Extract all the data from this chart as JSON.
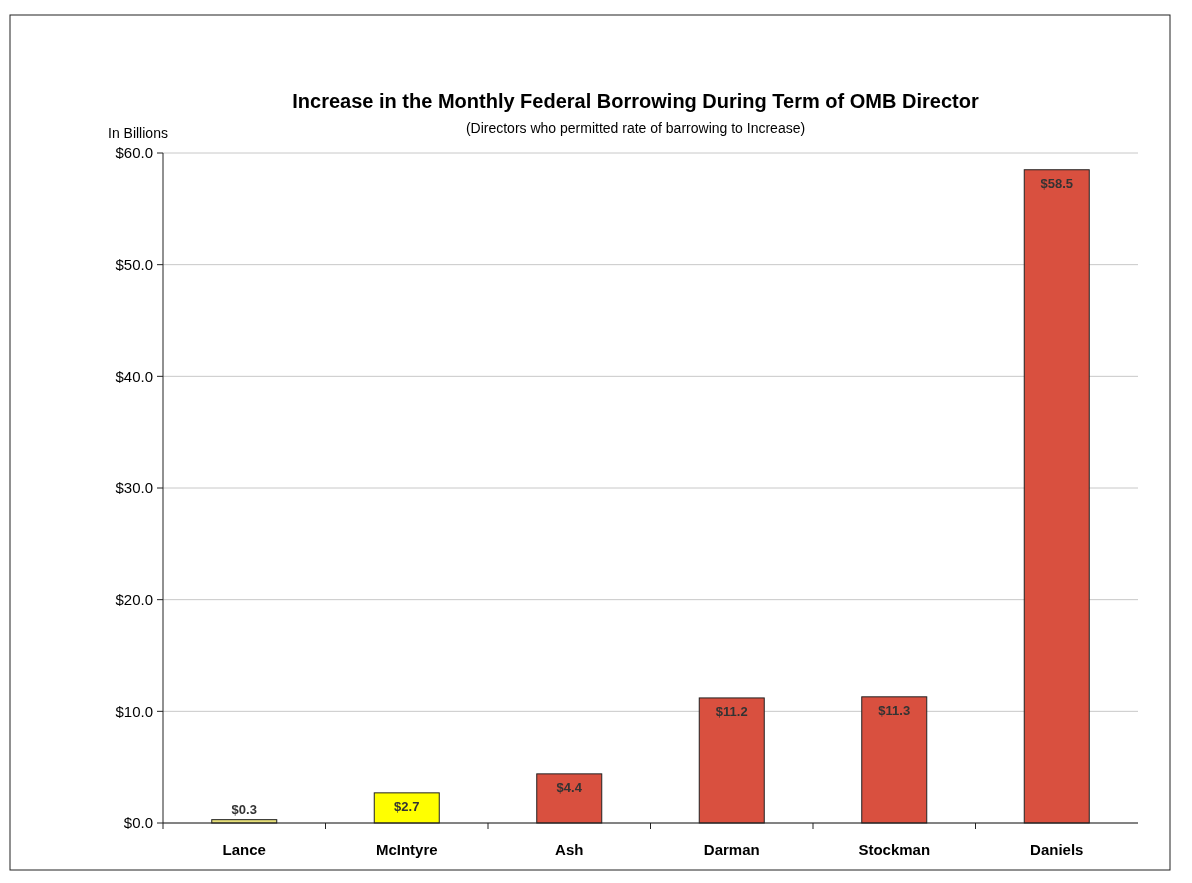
{
  "chart_data": {
    "type": "bar",
    "title": "Increase in the Monthly Federal Borrowing During Term of OMB Director",
    "subtitle": "(Directors who permitted rate of barrowing to Increase)",
    "ylabel": "In Billions",
    "categories": [
      "Lance",
      "McIntyre",
      "Ash",
      "Darman",
      "Stockman",
      "Daniels"
    ],
    "values": [
      0.3,
      2.7,
      4.4,
      11.2,
      11.3,
      58.5
    ],
    "colors": [
      "#e6df7a",
      "#ffff00",
      "#d9503f",
      "#d9503f",
      "#d9503f",
      "#d9503f"
    ],
    "value_labels": [
      "$0.3",
      "$2.7",
      "$4.4",
      "$11.2",
      "$11.3",
      "$58.5"
    ],
    "ylim": [
      0,
      60
    ],
    "yticks": [
      {
        "value": 0,
        "label": "$0.0"
      },
      {
        "value": 10,
        "label": "$10.0"
      },
      {
        "value": 20,
        "label": "$20.0"
      },
      {
        "value": 30,
        "label": "$30.0"
      },
      {
        "value": 40,
        "label": "$40.0"
      },
      {
        "value": 50,
        "label": "$50.0"
      },
      {
        "value": 60,
        "label": "$60.0"
      }
    ],
    "grid": "y"
  }
}
